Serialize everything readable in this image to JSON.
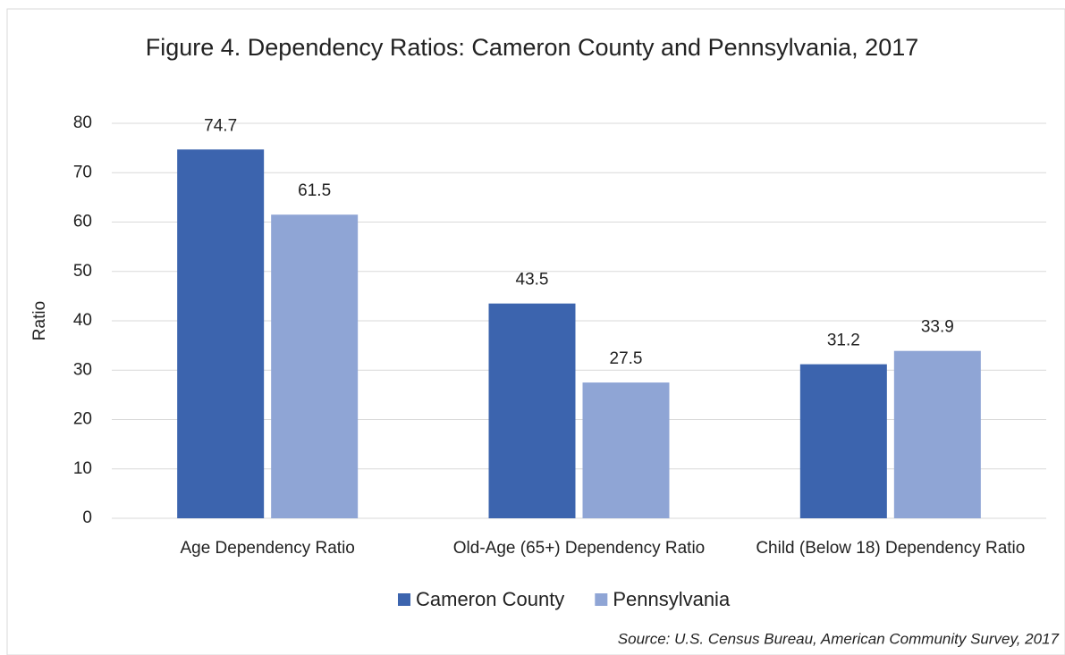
{
  "chart_data": {
    "type": "bar",
    "title": "Figure 4. Dependency Ratios: Cameron County and Pennsylvania, 2017",
    "y_label": "Ratio",
    "categories": [
      "Age Dependency Ratio",
      "Old-Age (65+) Dependency Ratio",
      "Child (Below 18) Dependency Ratio"
    ],
    "series": [
      {
        "name": "Cameron County",
        "color": "#3c64ae",
        "values": [
          74.7,
          43.5,
          31.2
        ]
      },
      {
        "name": "Pennsylvania",
        "color": "#8fa5d5",
        "values": [
          61.5,
          27.5,
          33.9
        ]
      }
    ],
    "ylim": [
      0,
      80
    ],
    "yticks": [
      0,
      10,
      20,
      30,
      40,
      50,
      60,
      70,
      80
    ],
    "grid": true,
    "legend": "bottom",
    "source": "Source: U.S. Census Bureau, American Community Survey, 2017"
  }
}
